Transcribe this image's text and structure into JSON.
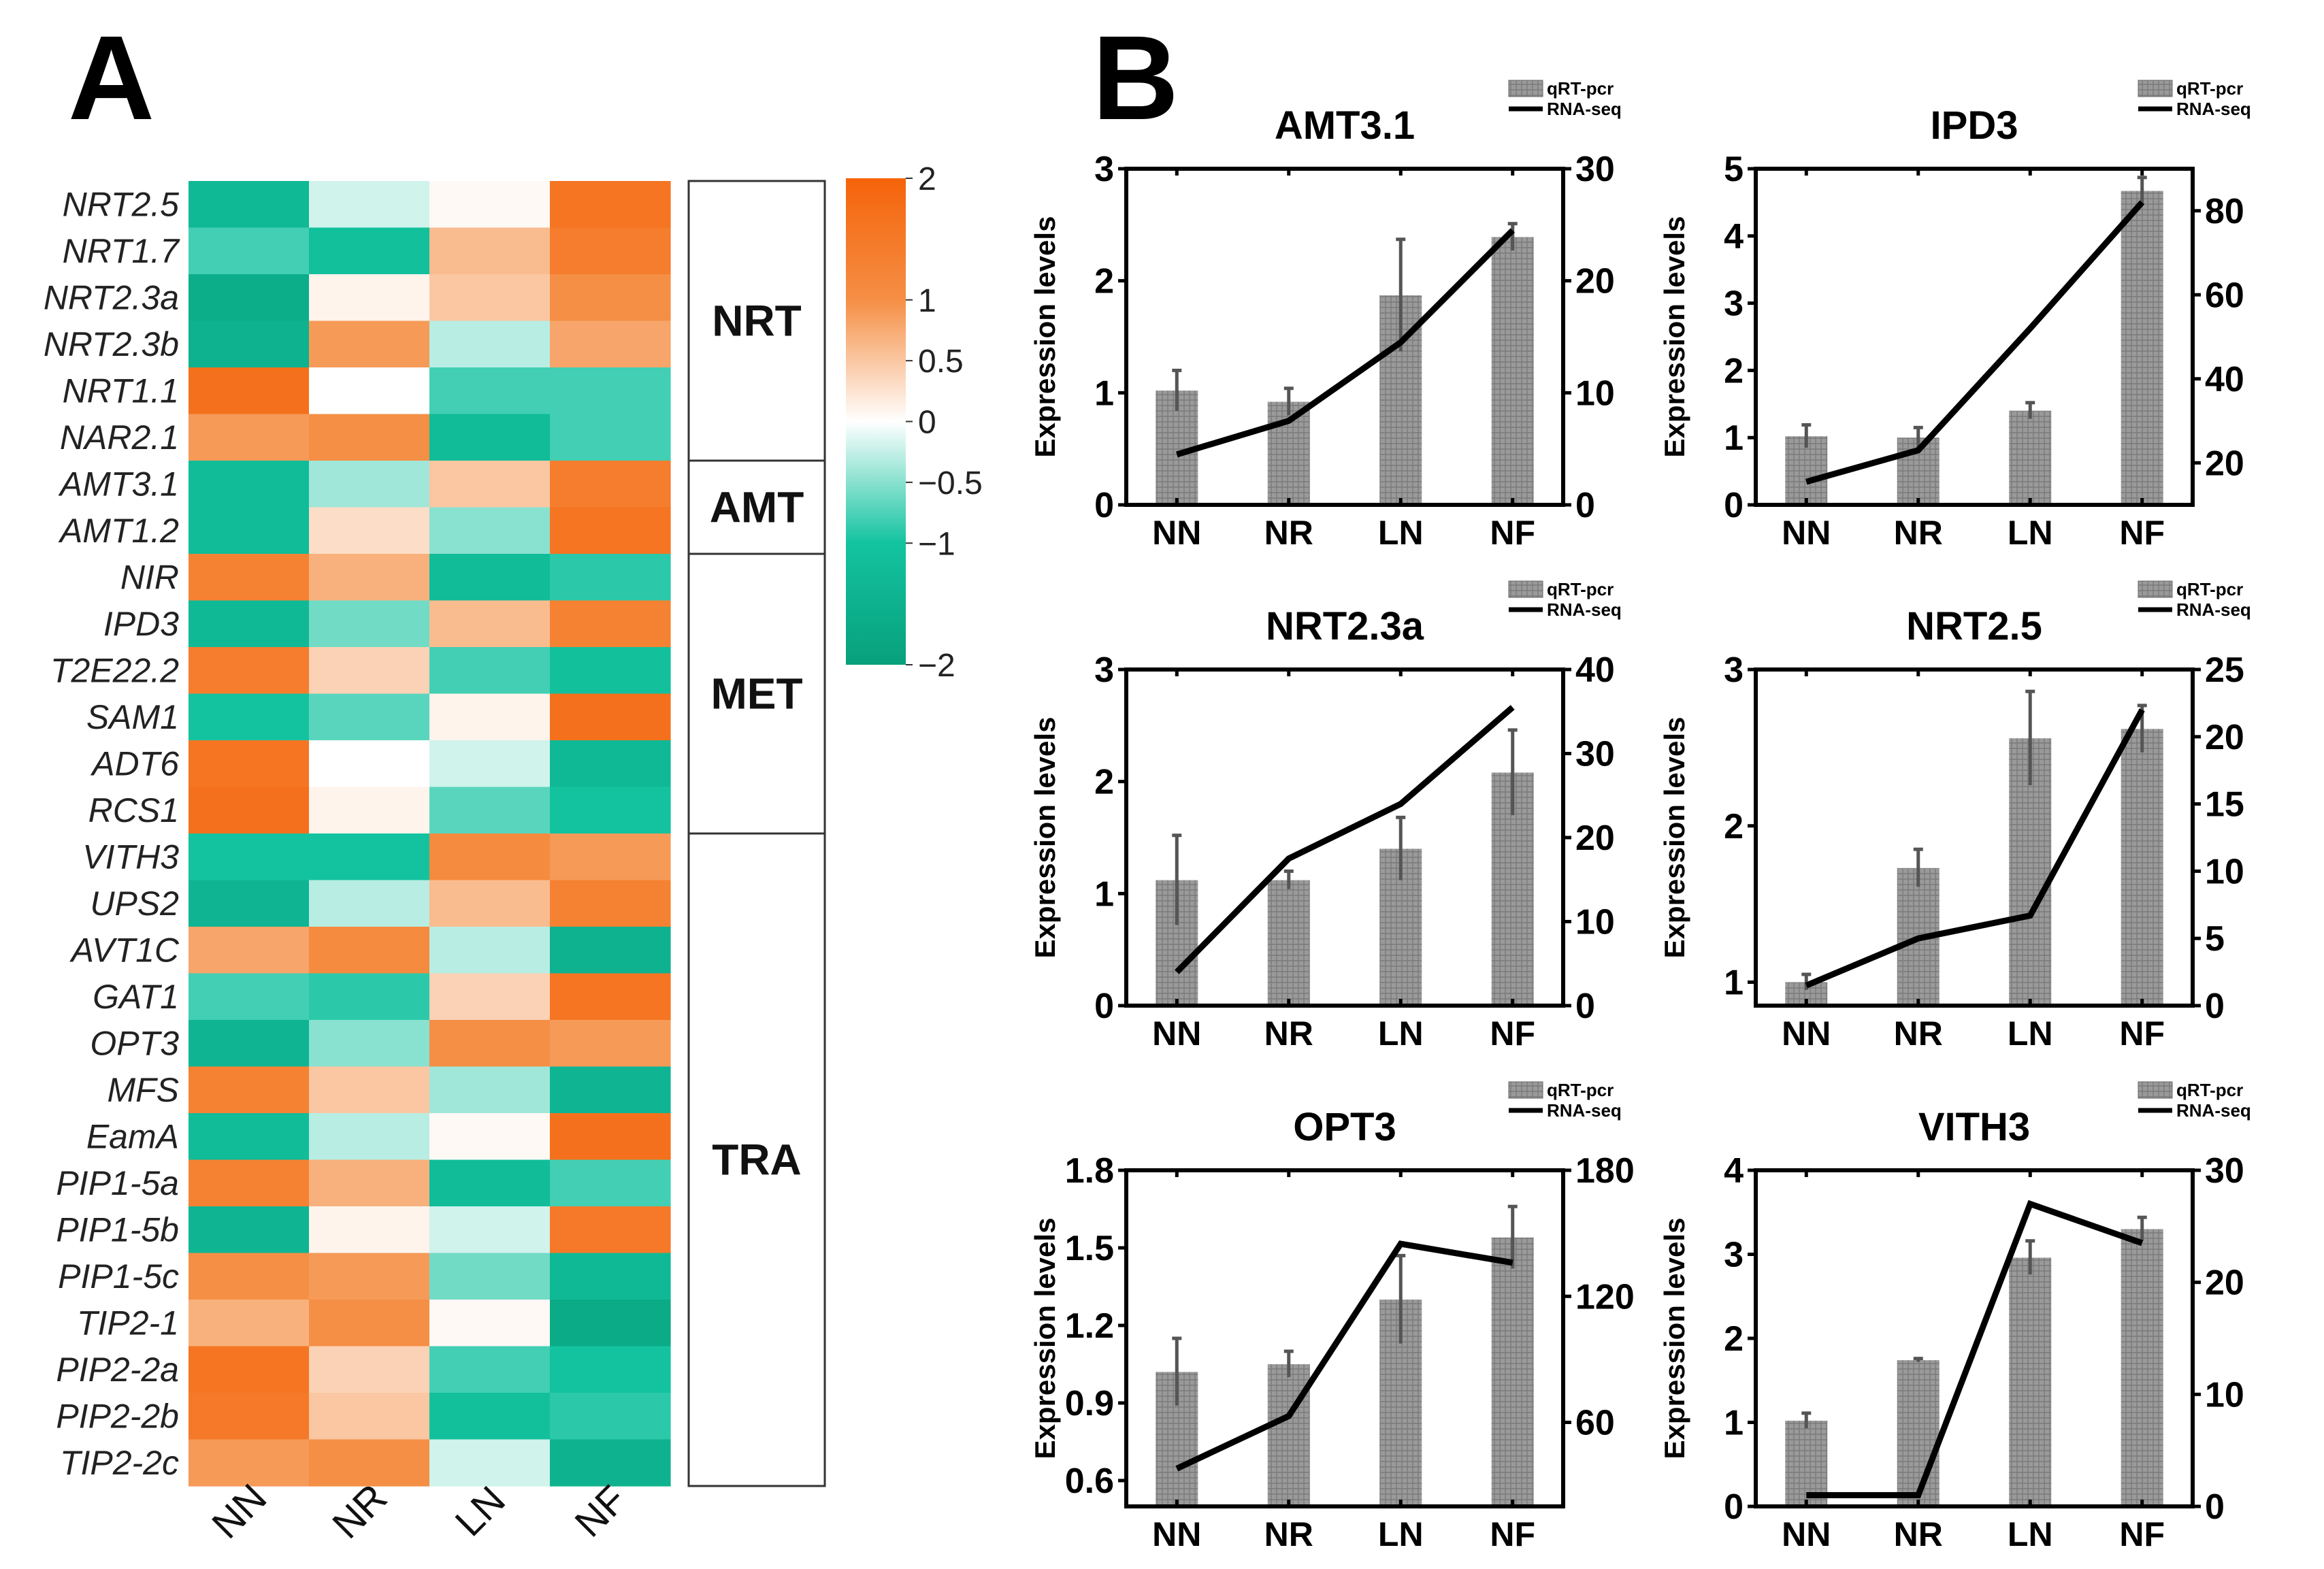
{
  "panel_a": {
    "letter": "A",
    "chart_data": {
      "type": "heatmap",
      "conditions": [
        "NN",
        "NR",
        "LN",
        "NF"
      ],
      "genes": [
        "NRT2.5",
        "NRT1.7",
        "NRT2.3a",
        "NRT2.3b",
        "NRT1.1",
        "NAR2.1",
        "AMT3.1",
        "AMT1.2",
        "NIR",
        "IPD3",
        "T2E22.2",
        "SAM1",
        "ADT6",
        "RCS1",
        "VITH3",
        "UPS2",
        "AVT1C",
        "GAT1",
        "OPT3",
        "MFS",
        "EamA",
        "PIP1-5a",
        "PIP1-5b",
        "PIP1-5c",
        "TIP2-1",
        "PIP2-2a",
        "PIP2-2b",
        "TIP2-2c"
      ],
      "values": [
        [
          -1.3,
          -0.2,
          0.05,
          1.6
        ],
        [
          -0.8,
          -1.1,
          0.6,
          1.4
        ],
        [
          -1.6,
          0.1,
          0.5,
          1.0
        ],
        [
          -1.5,
          0.9,
          -0.3,
          0.8
        ],
        [
          1.7,
          0.0,
          -0.8,
          -0.8
        ],
        [
          0.9,
          1.0,
          -1.2,
          -0.8
        ],
        [
          -1.2,
          -0.4,
          0.5,
          1.4
        ],
        [
          -1.2,
          0.3,
          -0.5,
          1.6
        ],
        [
          1.3,
          0.7,
          -1.2,
          -0.9
        ],
        [
          -1.3,
          -0.6,
          0.6,
          1.3
        ],
        [
          1.4,
          0.4,
          -0.8,
          -1.1
        ],
        [
          -1.0,
          -0.7,
          0.1,
          1.7
        ],
        [
          1.6,
          0.0,
          -0.2,
          -1.3
        ],
        [
          1.7,
          0.1,
          -0.7,
          -1.0
        ],
        [
          -1.0,
          -1.0,
          1.1,
          0.9
        ],
        [
          -1.4,
          -0.3,
          0.6,
          1.3
        ],
        [
          0.8,
          1.1,
          -0.3,
          -1.5
        ],
        [
          -0.8,
          -0.9,
          0.4,
          1.6
        ],
        [
          -1.4,
          -0.5,
          1.0,
          0.9
        ],
        [
          1.3,
          0.5,
          -0.4,
          -1.4
        ],
        [
          -1.2,
          -0.3,
          0.05,
          1.7
        ],
        [
          1.3,
          0.7,
          -1.2,
          -0.8
        ],
        [
          -1.4,
          0.1,
          -0.2,
          1.5
        ],
        [
          1.0,
          0.9,
          -0.6,
          -1.3
        ],
        [
          0.7,
          1.0,
          0.05,
          -1.7
        ],
        [
          1.6,
          0.4,
          -0.8,
          -1.0
        ],
        [
          1.5,
          0.5,
          -1.1,
          -0.9
        ],
        [
          0.9,
          1.0,
          -0.2,
          -1.5
        ]
      ],
      "groups": [
        {
          "label": "NRT",
          "rows": 6
        },
        {
          "label": "AMT",
          "rows": 2
        },
        {
          "label": "MET",
          "rows": 6
        },
        {
          "label": "TRA",
          "rows": 14
        }
      ],
      "colorbar": {
        "range": [
          -2,
          2
        ],
        "ticks": [
          "2",
          "1",
          "0.5",
          "0",
          "−0.5",
          "−1",
          "−2"
        ],
        "tick_values": [
          2,
          1,
          0.5,
          0,
          -0.5,
          -1,
          -2
        ],
        "low_color": "#08a07c",
        "mid_low_color": "#13c3a0",
        "mid_color": "#ffffff",
        "mid_high_color": "#f58f45",
        "high_color": "#f5630a"
      }
    }
  },
  "panel_b": {
    "letter": "B",
    "legend": {
      "bar": "qRT-pcr",
      "line": "RNA-seq"
    },
    "ylabel": "Expression levels",
    "bar_color": "#9a9a9a",
    "line_color": "#000000",
    "chart_data": [
      {
        "type": "bar+line",
        "title": "AMT3.1",
        "categories": [
          "NN",
          "NR",
          "LN",
          "NF"
        ],
        "bars": [
          1.02,
          0.92,
          1.87,
          2.39
        ],
        "errors": [
          0.18,
          0.12,
          0.5,
          0.12
        ],
        "line": [
          4.5,
          7.5,
          14.5,
          24.5
        ],
        "y1lim": [
          0,
          3
        ],
        "y1ticks": [
          0,
          1,
          2,
          3
        ],
        "y1labels": [
          "0",
          "1",
          "2",
          "3"
        ],
        "y2lim": [
          0,
          30
        ],
        "y2ticks": [
          0,
          10,
          20,
          30
        ],
        "y2labels": [
          "0",
          "10",
          "20",
          "30"
        ]
      },
      {
        "type": "bar+line",
        "title": "IPD3",
        "categories": [
          "NN",
          "NR",
          "LN",
          "NF"
        ],
        "bars": [
          1.02,
          1.0,
          1.4,
          4.67
        ],
        "errors": [
          0.17,
          0.15,
          0.12,
          0.2
        ],
        "line": [
          15.5,
          23,
          52,
          82
        ],
        "y1lim": [
          0,
          5
        ],
        "y1ticks": [
          0,
          1,
          2,
          3,
          4,
          5
        ],
        "y1labels": [
          "0",
          "1",
          "2",
          "3",
          "4",
          "5"
        ],
        "y2lim": [
          10,
          90
        ],
        "y2ticks": [
          20,
          40,
          60,
          80
        ],
        "y2labels": [
          "20",
          "40",
          "60",
          "80"
        ]
      },
      {
        "type": "bar+line",
        "title": "NRT2.3a",
        "categories": [
          "NN",
          "NR",
          "LN",
          "NF"
        ],
        "bars": [
          1.12,
          1.12,
          1.4,
          2.08
        ],
        "errors": [
          0.4,
          0.08,
          0.28,
          0.38
        ],
        "line": [
          4,
          17.5,
          24,
          35.5
        ],
        "y1lim": [
          0,
          3
        ],
        "y1ticks": [
          0,
          1,
          2,
          3
        ],
        "y1labels": [
          "0",
          "1",
          "2",
          "3"
        ],
        "y2lim": [
          0,
          40
        ],
        "y2ticks": [
          0,
          10,
          20,
          30,
          40
        ],
        "y2labels": [
          "0",
          "10",
          "20",
          "30",
          "40"
        ]
      },
      {
        "type": "bar+line",
        "title": "NRT2.5",
        "categories": [
          "NN",
          "NR",
          "LN",
          "NF"
        ],
        "bars": [
          1.0,
          1.73,
          2.56,
          2.62
        ],
        "errors": [
          0.05,
          0.12,
          0.3,
          0.15
        ],
        "line": [
          1.5,
          5,
          6.7,
          22
        ],
        "y1lim": [
          0.85,
          3
        ],
        "y1ticks": [
          1,
          2,
          3
        ],
        "y1labels": [
          "1",
          "2",
          "3"
        ],
        "y2lim": [
          0,
          25
        ],
        "y2ticks": [
          0,
          5,
          10,
          15,
          20,
          25
        ],
        "y2labels": [
          "0",
          "5",
          "10",
          "15",
          "20",
          "25"
        ]
      },
      {
        "type": "bar+line",
        "title": "OPT3",
        "categories": [
          "NN",
          "NR",
          "LN",
          "NF"
        ],
        "bars": [
          1.02,
          1.05,
          1.3,
          1.54
        ],
        "errors": [
          0.13,
          0.05,
          0.17,
          0.12
        ],
        "line": [
          38,
          63,
          145,
          136
        ],
        "y1lim": [
          0.5,
          1.8
        ],
        "y1ticks": [
          0.6,
          0.9,
          1.2,
          1.5,
          1.8
        ],
        "y1labels": [
          "0.6",
          "0.9",
          "1.2",
          "1.5",
          "1.8"
        ],
        "y2lim": [
          20,
          180
        ],
        "y2ticks": [
          60,
          120,
          180
        ],
        "y2labels": [
          "60",
          "120",
          "180"
        ]
      },
      {
        "type": "bar+line",
        "title": "VITH3",
        "categories": [
          "NN",
          "NR",
          "LN",
          "NF"
        ],
        "bars": [
          1.02,
          1.74,
          2.96,
          3.3
        ],
        "errors": [
          0.09,
          0.02,
          0.2,
          0.14
        ],
        "line": [
          1,
          1,
          27,
          23.5
        ],
        "y1lim": [
          0,
          4
        ],
        "y1ticks": [
          0,
          1,
          2,
          3,
          4
        ],
        "y1labels": [
          "0",
          "1",
          "2",
          "3",
          "4"
        ],
        "y2lim": [
          0,
          30
        ],
        "y2ticks": [
          0,
          10,
          20,
          30
        ],
        "y2labels": [
          "0",
          "10",
          "20",
          "30"
        ]
      }
    ]
  }
}
